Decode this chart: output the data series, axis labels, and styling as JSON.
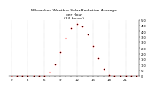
{
  "title": "Milwaukee Weather Solar Radiation Average\nper Hour\n(24 Hours)",
  "hours": [
    0,
    1,
    2,
    3,
    4,
    5,
    6,
    7,
    8,
    9,
    10,
    11,
    12,
    13,
    14,
    15,
    16,
    17,
    18,
    19,
    20,
    21,
    22,
    23
  ],
  "solar_radiation": [
    0,
    0,
    0,
    0,
    0,
    0,
    2,
    30,
    100,
    210,
    340,
    430,
    470,
    440,
    370,
    270,
    160,
    60,
    10,
    1,
    0,
    0,
    0,
    0
  ],
  "dot_color_red": "#ff0000",
  "dot_color_black": "#000000",
  "dot_size": 1.5,
  "background_color": "#ffffff",
  "grid_color": "#aaaaaa",
  "ylim": [
    0,
    500
  ],
  "ytick_values": [
    0,
    50,
    100,
    150,
    200,
    250,
    300,
    350,
    400,
    450,
    500
  ],
  "title_fontsize": 3.2,
  "title_color": "#000000",
  "xlabel_fontsize": 2.8,
  "ylabel_fontsize": 2.5
}
